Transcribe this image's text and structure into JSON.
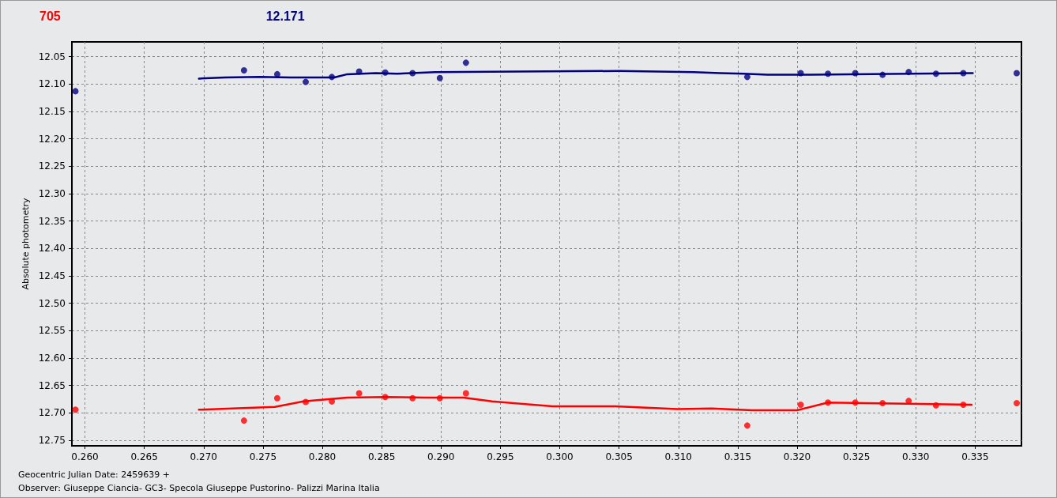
{
  "chart_data": {
    "type": "scatter",
    "ylabel": "Absolute photometry",
    "xlabel": "Geocentric Julian Date: 2459639 +",
    "annotations": [
      "Observer: Giuseppe Ciancia- GC3- Specola Giuseppe Pustorino- Palizzi Marina Italia"
    ],
    "xlim": [
      0.2589,
      0.3389
    ],
    "xticks": [
      {
        "value": 0.26,
        "label": "0.260"
      },
      {
        "value": 0.265,
        "label": "0.265"
      },
      {
        "value": 0.27,
        "label": "0.270"
      },
      {
        "value": 0.275,
        "label": "0.275"
      },
      {
        "value": 0.28,
        "label": "0.280"
      },
      {
        "value": 0.285,
        "label": "0.285"
      },
      {
        "value": 0.29,
        "label": "0.290"
      },
      {
        "value": 0.295,
        "label": "0.295"
      },
      {
        "value": 0.3,
        "label": "0.300"
      },
      {
        "value": 0.305,
        "label": "0.305"
      },
      {
        "value": 0.31,
        "label": "0.310"
      },
      {
        "value": 0.315,
        "label": "0.315"
      },
      {
        "value": 0.32,
        "label": "0.320"
      },
      {
        "value": 0.325,
        "label": "0.325"
      },
      {
        "value": 0.33,
        "label": "0.330"
      },
      {
        "value": 0.335,
        "label": "0.335"
      }
    ],
    "ylim": [
      12.76,
      12.023
    ],
    "yticks": [
      12.05,
      {
        "value": 12.1,
        "label": "12.10"
      },
      12.15,
      {
        "value": 12.2,
        "label": "12.20"
      },
      12.25,
      {
        "value": 12.3,
        "label": "12.30"
      },
      12.35,
      {
        "value": 12.4,
        "label": "12.40"
      },
      12.45,
      {
        "value": 12.5,
        "label": "12.50"
      },
      12.55,
      {
        "value": 12.6,
        "label": "12.60"
      },
      12.65,
      {
        "value": 12.7,
        "label": "12.70"
      },
      12.75
    ],
    "grid": true,
    "legend": "top left",
    "marker": "circle",
    "series": [
      {
        "name": "705",
        "color": "#ff0000",
        "x": [
          0.2592,
          0.2734,
          0.2762,
          0.2786,
          0.2808,
          0.2831,
          0.2853,
          0.2876,
          0.2899,
          0.2921,
          0.3158,
          0.3203,
          0.3226,
          0.3249,
          0.3272,
          0.3294,
          0.3317,
          0.334,
          0.3385
        ],
        "values": [
          12.694,
          12.714,
          12.673,
          12.68,
          12.679,
          12.664,
          12.671,
          12.673,
          12.673,
          12.664,
          12.723,
          12.685,
          12.681,
          12.681,
          12.682,
          12.678,
          12.686,
          12.685,
          12.682
        ]
      },
      {
        "type": "line",
        "marker": "none",
        "color": "#ff0000",
        "x": [
          0.2696,
          0.276,
          0.2784,
          0.2821,
          0.2853,
          0.2887,
          0.2919,
          0.2943,
          0.2994,
          0.3047,
          0.3099,
          0.3128,
          0.3162,
          0.32,
          0.3226,
          0.3347
        ],
        "values": [
          12.694,
          12.689,
          12.679,
          12.672,
          12.671,
          12.672,
          12.672,
          12.679,
          12.688,
          12.688,
          12.693,
          12.692,
          12.695,
          12.695,
          12.681,
          12.685
        ]
      },
      {
        "name": "12.171",
        "color": "#000080",
        "x": [
          0.2592,
          0.2734,
          0.2762,
          0.2786,
          0.2808,
          0.2831,
          0.2853,
          0.2876,
          0.2899,
          0.2921,
          0.3158,
          0.3203,
          0.3226,
          0.3249,
          0.3272,
          0.3294,
          0.3317,
          0.334,
          0.3385
        ],
        "values": [
          12.113,
          12.075,
          12.082,
          12.096,
          12.087,
          12.077,
          12.079,
          12.08,
          12.089,
          12.061,
          12.087,
          12.08,
          12.081,
          12.08,
          12.083,
          12.078,
          12.081,
          12.08,
          12.08
        ]
      },
      {
        "type": "line",
        "marker": "none",
        "color": "#000080",
        "x": [
          0.2696,
          0.2718,
          0.2747,
          0.2773,
          0.281,
          0.2821,
          0.2845,
          0.2863,
          0.2895,
          0.305,
          0.3113,
          0.3135,
          0.3155,
          0.3175,
          0.3211,
          0.3348
        ],
        "values": [
          12.09,
          12.088,
          12.087,
          12.088,
          12.088,
          12.082,
          12.08,
          12.081,
          12.078,
          12.076,
          12.078,
          12.08,
          12.081,
          12.083,
          12.083,
          12.08
        ]
      }
    ]
  }
}
